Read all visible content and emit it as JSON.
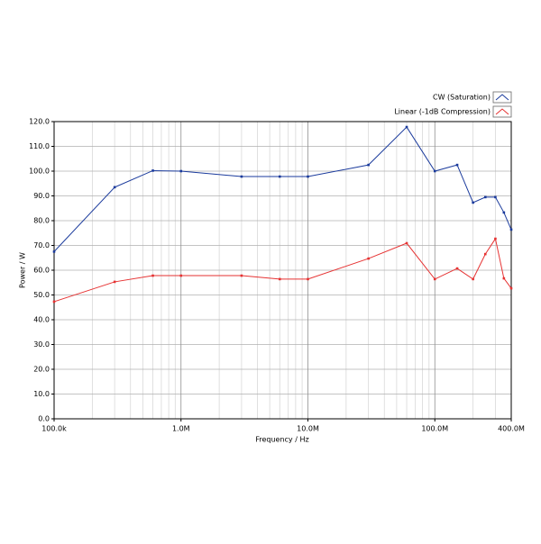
{
  "chart_data": {
    "type": "line",
    "xlabel": "Frequency / Hz",
    "ylabel": "Power / W",
    "xscale": "log",
    "grid": true,
    "legend": "upper right",
    "xlim": [
      100000,
      400000000
    ],
    "ylim": [
      0,
      120
    ],
    "xticks": [
      {
        "value": 100000,
        "label": "100.0k"
      },
      {
        "value": 1000000,
        "label": "1.0M"
      },
      {
        "value": 10000000,
        "label": "10.0M"
      },
      {
        "value": 100000000,
        "label": "100.0M"
      },
      {
        "value": 400000000,
        "label": "400.0M"
      }
    ],
    "yticks": [
      {
        "value": 0,
        "label": "0.0"
      },
      {
        "value": 10,
        "label": "10.0"
      },
      {
        "value": 20,
        "label": "20.0"
      },
      {
        "value": 30,
        "label": "30.0"
      },
      {
        "value": 40,
        "label": "40.0"
      },
      {
        "value": 50,
        "label": "50.0"
      },
      {
        "value": 60,
        "label": "60.0"
      },
      {
        "value": 70,
        "label": "70.0"
      },
      {
        "value": 80,
        "label": "80.0"
      },
      {
        "value": 90,
        "label": "90.0"
      },
      {
        "value": 100,
        "label": "100.0"
      },
      {
        "value": 110,
        "label": "110.0"
      },
      {
        "value": 120,
        "label": "120.0"
      }
    ],
    "x": [
      100000,
      300000,
      600000,
      1000000,
      3000000,
      6000000,
      10000000,
      30000000,
      60000000,
      100000000,
      150000000,
      200000000,
      250000000,
      300000000,
      350000000,
      400000000
    ],
    "series": [
      {
        "name": "CW (Saturation)",
        "color": "#1a3a9c",
        "values": [
          67.5,
          93.5,
          100.2,
          100.0,
          97.8,
          97.8,
          97.8,
          102.5,
          117.8,
          100.0,
          102.5,
          87.3,
          89.5,
          89.5,
          83.3,
          76.4
        ]
      },
      {
        "name": "Linear (-1dB Compression)",
        "color": "#e63232",
        "values": [
          47.3,
          55.3,
          57.8,
          57.8,
          57.8,
          56.4,
          56.4,
          64.7,
          70.9,
          56.4,
          60.7,
          56.4,
          66.5,
          72.7,
          56.7,
          52.7
        ]
      }
    ]
  }
}
